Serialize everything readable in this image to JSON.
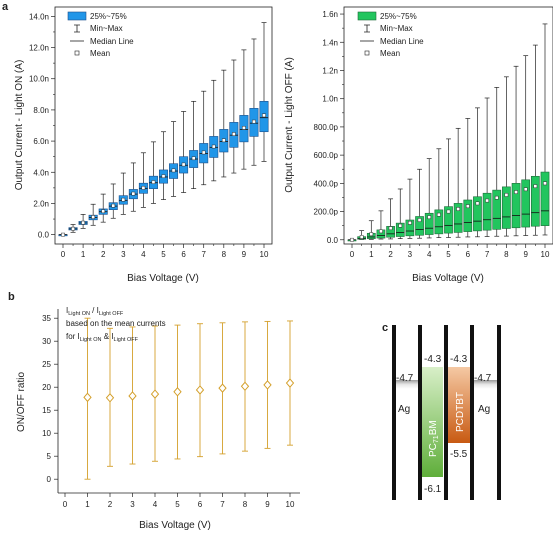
{
  "panels": {
    "a": "a",
    "b": "b",
    "c": "c"
  },
  "chart_data": [
    {
      "type": "box",
      "panel": "a",
      "xlabel": "Bias Voltage (V)",
      "ylabel": "Output Current - Light ON (A)",
      "categories": [
        "0",
        "1",
        "2",
        "3",
        "4",
        "5",
        "6",
        "7",
        "8",
        "9",
        "10"
      ],
      "x_mid_ticks": [
        0.5,
        1.5,
        2.5,
        3.5,
        4.5,
        5.5,
        6.5,
        7.5,
        8.5,
        9.5
      ],
      "ylim": [
        -0.6,
        14.6
      ],
      "yticks": [
        0.0,
        2.0,
        4.0,
        6.0,
        8.0,
        10.0,
        12.0,
        14.0
      ],
      "ytick_labels": [
        "0.0",
        "2.0n",
        "4.0n",
        "6.0n",
        "8.0n",
        "10.0n",
        "12.0n",
        "14.0n"
      ],
      "x": [
        0,
        0.5,
        1,
        1.5,
        2,
        2.5,
        3,
        3.5,
        4,
        4.5,
        5,
        5.5,
        6,
        6.5,
        7,
        7.5,
        8,
        8.5,
        9,
        9.5,
        10
      ],
      "q1": [
        0,
        0.3,
        0.65,
        0.95,
        1.3,
        1.6,
        1.95,
        2.3,
        2.65,
        2.95,
        3.3,
        3.6,
        3.95,
        4.3,
        4.6,
        4.95,
        5.3,
        5.6,
        5.95,
        6.3,
        6.6
      ],
      "q3": [
        0,
        0.45,
        0.85,
        1.25,
        1.65,
        2.05,
        2.5,
        2.9,
        3.3,
        3.75,
        4.15,
        4.55,
        5.0,
        5.4,
        5.85,
        6.3,
        6.75,
        7.2,
        7.65,
        8.1,
        8.55
      ],
      "median": [
        0,
        0.37,
        0.75,
        1.1,
        1.47,
        1.83,
        2.2,
        2.6,
        2.97,
        3.33,
        3.7,
        4.08,
        4.45,
        4.85,
        5.2,
        5.6,
        5.98,
        6.38,
        6.75,
        7.15,
        7.5
      ],
      "mean": [
        0,
        0.38,
        0.77,
        1.13,
        1.5,
        1.86,
        2.24,
        2.63,
        3.0,
        3.37,
        3.75,
        4.12,
        4.5,
        4.9,
        5.27,
        5.65,
        6.05,
        6.45,
        6.85,
        7.25,
        7.65
      ],
      "min": [
        0,
        0.15,
        0.4,
        0.6,
        0.8,
        1.05,
        1.3,
        1.5,
        1.75,
        2.0,
        2.25,
        2.45,
        2.7,
        2.95,
        3.2,
        3.45,
        3.7,
        3.95,
        4.2,
        4.45,
        4.7
      ],
      "max": [
        0,
        0.65,
        1.3,
        1.95,
        2.6,
        3.25,
        3.95,
        4.6,
        5.25,
        5.95,
        6.6,
        7.25,
        7.9,
        8.55,
        9.2,
        9.9,
        10.55,
        11.2,
        11.85,
        12.55,
        13.6
      ],
      "legend": {
        "box": "25%~75%",
        "whisker": "Min~Max",
        "median": "Median Line",
        "mean": "Mean"
      },
      "colors": {
        "box": "#2196e8",
        "box_edge": "#1d4f8a"
      }
    },
    {
      "type": "box",
      "panel": "a",
      "xlabel": "Bias Voltage (V)",
      "ylabel": "Output Current - Light OFF (A)",
      "categories": [
        "0",
        "1",
        "2",
        "3",
        "4",
        "5",
        "6",
        "7",
        "8",
        "9",
        "10"
      ],
      "x_mid_ticks": [
        0.5,
        1.5,
        2.5,
        3.5,
        4.5,
        5.5,
        6.5,
        7.5,
        8.5,
        9.5
      ],
      "ylim": [
        -30,
        1650
      ],
      "yticks": [
        0,
        200,
        400,
        600,
        800,
        1000,
        1200,
        1400,
        1600
      ],
      "ytick_labels": [
        "0.0",
        "200.0p",
        "400.0p",
        "600.0p",
        "800.0p",
        "1.0n",
        "1.2n",
        "1.4n",
        "1.6n"
      ],
      "x": [
        0,
        0.5,
        1,
        1.5,
        2,
        2.5,
        3,
        3.5,
        4,
        4.5,
        5,
        5.5,
        6,
        6.5,
        7,
        7.5,
        8,
        8.5,
        9,
        9.5,
        10
      ],
      "q1": [
        0,
        4,
        8,
        12,
        18,
        23,
        28,
        32,
        37,
        42,
        47,
        52,
        58,
        63,
        68,
        74,
        80,
        85,
        90,
        96,
        100
      ],
      "q3": [
        0,
        22,
        46,
        70,
        95,
        118,
        140,
        165,
        188,
        212,
        235,
        258,
        282,
        305,
        330,
        352,
        375,
        400,
        425,
        450,
        480
      ],
      "median": [
        0,
        10,
        20,
        30,
        42,
        52,
        62,
        72,
        82,
        92,
        102,
        112,
        122,
        132,
        142,
        152,
        162,
        172,
        182,
        192,
        205
      ],
      "mean": [
        0,
        20,
        40,
        60,
        82,
        100,
        120,
        140,
        160,
        178,
        200,
        218,
        238,
        258,
        278,
        298,
        318,
        338,
        358,
        380,
        400
      ],
      "min": [
        0,
        2,
        3,
        5,
        6,
        8,
        10,
        11,
        13,
        15,
        16,
        18,
        20,
        21,
        23,
        25,
        26,
        28,
        30,
        32,
        34
      ],
      "max": [
        0,
        65,
        135,
        205,
        290,
        360,
        430,
        500,
        575,
        645,
        715,
        790,
        860,
        935,
        1005,
        1080,
        1155,
        1230,
        1305,
        1380,
        1530
      ],
      "legend": {
        "box": "25%~75%",
        "whisker": "Min~Max",
        "median": "Median Line",
        "mean": "Mean"
      },
      "colors": {
        "box": "#22c55e",
        "box_edge": "#1f6b3a"
      }
    },
    {
      "type": "errorbar",
      "panel": "b",
      "xlabel": "Bias Voltage (V)",
      "ylabel": "ON/OFF ratio",
      "xlim": [
        -0.2,
        10.5
      ],
      "ylim": [
        -3,
        37
      ],
      "xticks": [
        0,
        1,
        2,
        3,
        4,
        5,
        6,
        7,
        8,
        9,
        10
      ],
      "yticks": [
        0,
        5,
        10,
        15,
        20,
        25,
        30,
        35
      ],
      "x": [
        1,
        2,
        3,
        4,
        5,
        6,
        7,
        8,
        9,
        10
      ],
      "y": [
        17.8,
        17.7,
        18.1,
        18.5,
        19.0,
        19.4,
        19.8,
        20.2,
        20.5,
        20.9
      ],
      "err_low": [
        0.0,
        2.8,
        3.3,
        3.9,
        4.4,
        4.9,
        5.5,
        6.1,
        6.7,
        7.4
      ],
      "err_high": [
        35.0,
        32.8,
        33.1,
        33.3,
        33.5,
        33.8,
        34.0,
        34.2,
        34.3,
        34.4
      ],
      "colors": {
        "marker": "#d4a02c"
      },
      "annotation": {
        "line1_a": "I",
        "line1_a_sub": "Light ON",
        "line1_sep": " / I",
        "line1_b_sub": "Light OFF",
        "line2": "based on the mean currents",
        "line3_a": "for  I",
        "line3_a_sub": "Light ON",
        "line3_sep": "  &  I",
        "line3_b_sub": "Light OFF"
      }
    }
  ],
  "diagram": {
    "left_electrode": {
      "level": "-4.7",
      "label": "Ag"
    },
    "right_electrode": {
      "level": "-4.7",
      "label": "Ag"
    },
    "acceptor": {
      "lumo": "-4.3",
      "homo": "-6.1",
      "label_main": "PC",
      "label_sub": "71",
      "label_end": "BM",
      "color_top": "#d8efc8",
      "color_bottom": "#5fae3a"
    },
    "donor": {
      "lumo": "-4.3",
      "homo": "-5.5",
      "label": "PCDTBT",
      "color_top": "#f5c9a4",
      "color_bottom": "#c85a12"
    }
  }
}
